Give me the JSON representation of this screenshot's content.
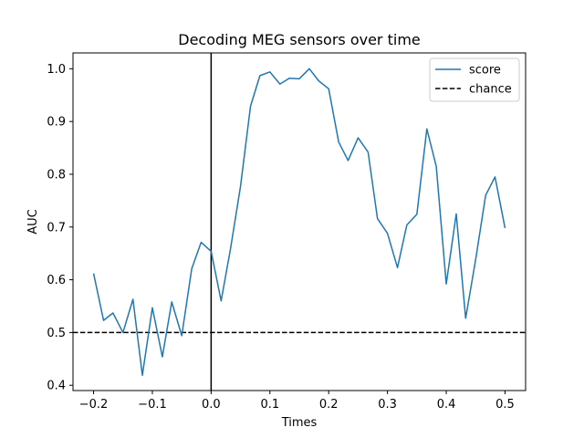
{
  "chart_data": {
    "type": "line",
    "title": "Decoding MEG sensors over time",
    "xlabel": "Times",
    "ylabel": "AUC",
    "xlim": [
      -0.235,
      0.535
    ],
    "ylim": [
      0.39,
      1.03
    ],
    "x_ticks": [
      -0.2,
      -0.1,
      0.0,
      0.1,
      0.2,
      0.3,
      0.4,
      0.5
    ],
    "x_tick_labels": [
      "−0.2",
      "−0.1",
      "0.0",
      "0.1",
      "0.2",
      "0.3",
      "0.4",
      "0.5"
    ],
    "y_ticks": [
      0.4,
      0.5,
      0.6,
      0.7,
      0.8,
      0.9,
      1.0
    ],
    "y_tick_labels": [
      "0.4",
      "0.5",
      "0.6",
      "0.7",
      "0.8",
      "0.9",
      "1.0"
    ],
    "grid": false,
    "legend_position": "top-right",
    "series": [
      {
        "name": "score",
        "color": "#1f77b4",
        "style": "solid",
        "x": [
          -0.2,
          -0.183,
          -0.167,
          -0.15,
          -0.133,
          -0.117,
          -0.1,
          -0.083,
          -0.067,
          -0.05,
          -0.033,
          -0.017,
          0.0,
          0.017,
          0.033,
          0.05,
          0.067,
          0.083,
          0.1,
          0.117,
          0.133,
          0.15,
          0.167,
          0.183,
          0.2,
          0.217,
          0.233,
          0.25,
          0.267,
          0.283,
          0.3,
          0.317,
          0.333,
          0.35,
          0.367,
          0.383,
          0.4,
          0.417,
          0.433,
          0.45,
          0.467,
          0.483,
          0.5
        ],
        "y": [
          0.612,
          0.523,
          0.537,
          0.5,
          0.563,
          0.419,
          0.547,
          0.454,
          0.558,
          0.494,
          0.621,
          0.671,
          0.654,
          0.56,
          0.659,
          0.777,
          0.929,
          0.987,
          0.994,
          0.971,
          0.982,
          0.981,
          1.0,
          0.977,
          0.962,
          0.861,
          0.826,
          0.869,
          0.842,
          0.716,
          0.688,
          0.623,
          0.704,
          0.724,
          0.886,
          0.815,
          0.592,
          0.725,
          0.527,
          0.638,
          0.76,
          0.795,
          0.698
        ]
      }
    ],
    "reference_lines": [
      {
        "orientation": "horizontal",
        "value": 0.5,
        "name": "chance",
        "color": "#000000",
        "style": "dashed"
      },
      {
        "orientation": "vertical",
        "value": 0.0,
        "color": "#000000",
        "style": "solid"
      }
    ]
  }
}
